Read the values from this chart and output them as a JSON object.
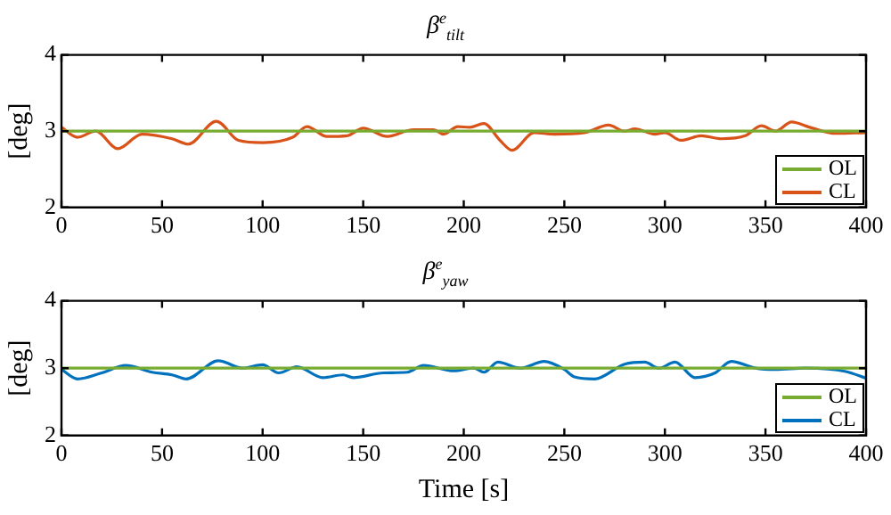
{
  "chart_data": [
    {
      "type": "line",
      "title": "β$^{e}$$_{tilt}$",
      "ylabel": "[deg]",
      "x": [
        0,
        8,
        17,
        28,
        40,
        55,
        63,
        77,
        88,
        100,
        115,
        122,
        132,
        142,
        150,
        162,
        175,
        185,
        190,
        197,
        203,
        210,
        218,
        224,
        235,
        245,
        260,
        272,
        280,
        285,
        295,
        300,
        308,
        318,
        328,
        340,
        348,
        355,
        363,
        372,
        385,
        400
      ],
      "series": [
        {
          "name": "OL",
          "color": "#77ac30",
          "values": [
            3,
            3,
            3,
            3,
            3,
            3,
            3,
            3,
            3,
            3,
            3,
            3,
            3,
            3,
            3,
            3,
            3,
            3,
            3,
            3,
            3,
            3,
            3,
            3,
            3,
            3,
            3,
            3,
            3,
            3,
            3,
            3,
            3,
            3,
            3,
            3,
            3,
            3,
            3,
            3,
            3,
            3
          ]
        },
        {
          "name": "CL",
          "color": "#d95319",
          "values": [
            3.05,
            2.92,
            3.0,
            2.77,
            2.96,
            2.9,
            2.83,
            3.13,
            2.88,
            2.85,
            2.92,
            3.06,
            2.93,
            2.94,
            3.04,
            2.93,
            3.02,
            3.02,
            2.96,
            3.06,
            3.05,
            3.1,
            2.88,
            2.75,
            2.98,
            2.96,
            2.98,
            3.08,
            3.0,
            3.03,
            2.96,
            2.98,
            2.88,
            2.94,
            2.9,
            2.94,
            3.07,
            3.0,
            3.12,
            3.05,
            2.97,
            2.98
          ]
        }
      ],
      "xlim": [
        0,
        400
      ],
      "xticks": [
        0,
        50,
        100,
        150,
        200,
        250,
        300,
        350,
        400
      ],
      "ylim": [
        2,
        4
      ],
      "yticks": [
        2,
        3,
        4
      ],
      "grid": false,
      "legend": "bottom right",
      "marker": "none",
      "line_style": "solid"
    },
    {
      "type": "line",
      "title": "β$^{e}$$_{yaw}$",
      "xlabel": "Time [s]",
      "ylabel": "[deg]",
      "x": [
        0,
        8,
        20,
        32,
        45,
        55,
        62,
        78,
        90,
        100,
        108,
        117,
        130,
        140,
        145,
        160,
        172,
        180,
        195,
        205,
        210,
        217,
        228,
        240,
        250,
        255,
        265,
        280,
        290,
        297,
        305,
        315,
        325,
        333,
        345,
        355,
        370,
        390,
        400
      ],
      "series": [
        {
          "name": "OL",
          "color": "#77ac30",
          "values": [
            3,
            3,
            3,
            3,
            3,
            3,
            3,
            3,
            3,
            3,
            3,
            3,
            3,
            3,
            3,
            3,
            3,
            3,
            3,
            3,
            3,
            3,
            3,
            3,
            3,
            3,
            3,
            3,
            3,
            3,
            3,
            3,
            3,
            3,
            3,
            3,
            3,
            3,
            3
          ]
        },
        {
          "name": "CL",
          "color": "#0072bd",
          "values": [
            2.98,
            2.84,
            2.93,
            3.04,
            2.94,
            2.9,
            2.84,
            3.11,
            3.0,
            3.05,
            2.93,
            3.02,
            2.86,
            2.9,
            2.86,
            2.93,
            2.94,
            3.04,
            2.96,
            3.0,
            2.94,
            3.09,
            3.0,
            3.1,
            2.98,
            2.87,
            2.84,
            3.06,
            3.09,
            3.0,
            3.09,
            2.86,
            2.93,
            3.1,
            3.0,
            2.98,
            3.0,
            2.95,
            2.85
          ]
        }
      ],
      "xlim": [
        0,
        400
      ],
      "xticks": [
        0,
        50,
        100,
        150,
        200,
        250,
        300,
        350,
        400
      ],
      "ylim": [
        2,
        4
      ],
      "yticks": [
        2,
        3,
        4
      ],
      "grid": false,
      "legend": "bottom right",
      "marker": "none",
      "line_style": "solid"
    }
  ]
}
